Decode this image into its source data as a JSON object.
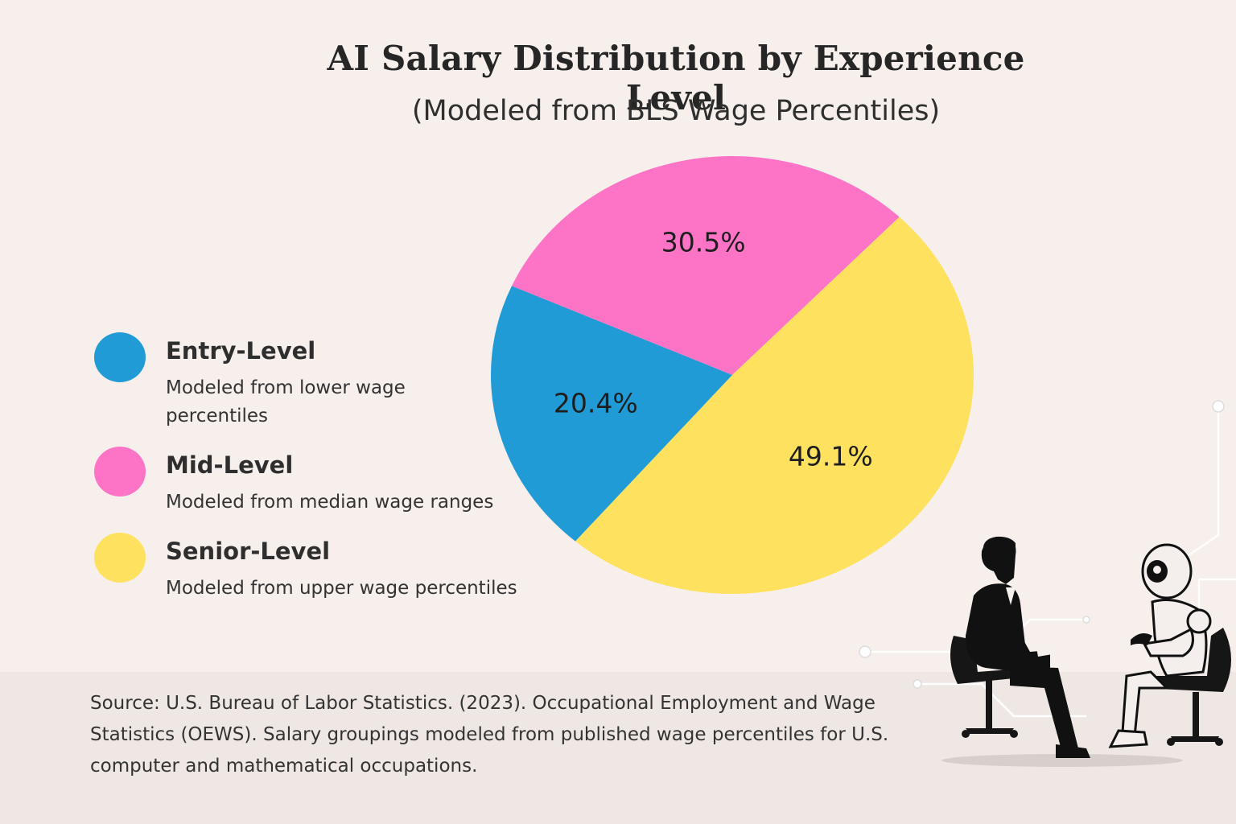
{
  "chart_data": {
    "type": "pie",
    "title": "AI Salary Distribution by Experience Level",
    "subtitle": "(Modeled from BLS Wage Percentiles)",
    "categories": [
      "Entry-Level",
      "Mid-Level",
      "Senior-Level"
    ],
    "values": [
      20.4,
      30.5,
      49.1
    ],
    "data_labels": [
      "20.4%",
      "30.5%",
      "49.1%"
    ],
    "descriptions": [
      "Modeled from lower wage percentiles",
      "Modeled from median wage ranges",
      "Modeled from upper wage percentiles"
    ],
    "colors": [
      "#219bd6",
      "#fd74c6",
      "#fee15e"
    ],
    "legend_position": "left"
  },
  "source": {
    "label": "Source:",
    "text": "U.S. Bureau of Labor Statistics. (2023). Occupational Employment and Wage Statistics (OEWS). Salary groupings modeled from published wage percentiles for U.S. computer and mathematical occupations."
  },
  "illustration": {
    "icon": "person-and-robot-conversation-icon"
  }
}
